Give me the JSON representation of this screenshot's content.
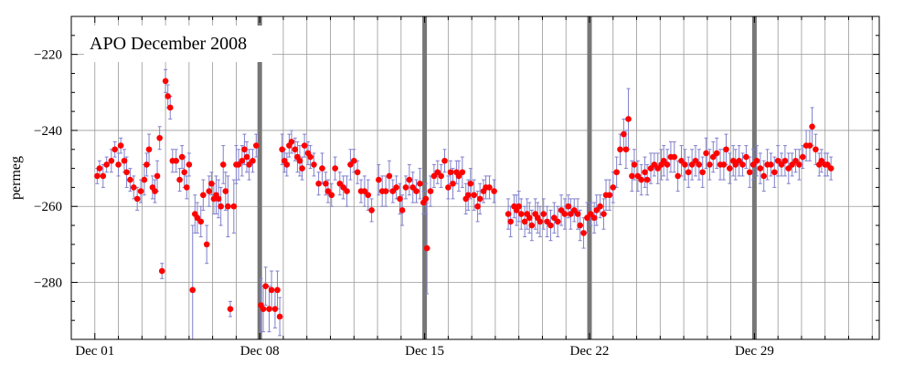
{
  "chart_data": {
    "type": "scatter",
    "title": "APO December 2008",
    "xlabel": "",
    "ylabel": "permeg",
    "xlim": [
      0.0,
      34.3
    ],
    "ylim": [
      -295,
      -210
    ],
    "x_ticks": [
      {
        "value": 1,
        "label": "Dec 01"
      },
      {
        "value": 8,
        "label": "Dec 08"
      },
      {
        "value": 15,
        "label": "Dec 15"
      },
      {
        "value": 22,
        "label": "Dec 22"
      },
      {
        "value": 29,
        "label": "Dec 29"
      }
    ],
    "y_ticks": [
      -280,
      -260,
      -240,
      -220
    ],
    "grid": true,
    "week_markers": [
      8,
      15,
      22,
      29
    ],
    "colors": {
      "point": "#ff0000",
      "errorbar": "#8080cc",
      "grid": "#999999",
      "week_marker": "#777777"
    },
    "series": [
      {
        "name": "",
        "points": [
          [
            1.1,
            -252,
            2
          ],
          [
            1.2,
            -250,
            2
          ],
          [
            1.35,
            -252,
            3
          ],
          [
            1.5,
            -249,
            2
          ],
          [
            1.7,
            -248,
            3
          ],
          [
            1.85,
            -245,
            2
          ],
          [
            2.0,
            -249,
            3
          ],
          [
            2.1,
            -244,
            2
          ],
          [
            2.25,
            -248,
            3
          ],
          [
            2.35,
            -251,
            4
          ],
          [
            2.5,
            -253,
            3
          ],
          [
            2.65,
            -255,
            3
          ],
          [
            2.8,
            -258,
            3
          ],
          [
            2.95,
            -256,
            3
          ],
          [
            3.1,
            -253,
            4
          ],
          [
            3.2,
            -249,
            3
          ],
          [
            3.3,
            -245,
            4
          ],
          [
            3.45,
            -255,
            3
          ],
          [
            3.55,
            -256,
            3
          ],
          [
            3.65,
            -252,
            4
          ],
          [
            3.75,
            -242,
            3
          ],
          [
            3.85,
            -277,
            2
          ],
          [
            4.0,
            -227,
            3
          ],
          [
            4.1,
            -231,
            3
          ],
          [
            4.2,
            -234,
            3
          ],
          [
            4.3,
            -248,
            3
          ],
          [
            4.45,
            -248,
            3
          ],
          [
            4.6,
            -253,
            3
          ],
          [
            4.7,
            -247,
            3
          ],
          [
            4.8,
            -251,
            4
          ],
          [
            4.9,
            -255,
            3
          ],
          [
            5.0,
            -249,
            3
          ],
          [
            5.15,
            -282,
            17
          ],
          [
            5.25,
            -262,
            5
          ],
          [
            5.35,
            -263,
            4
          ],
          [
            5.5,
            -264,
            4
          ],
          [
            5.6,
            -257,
            4
          ],
          [
            5.75,
            -270,
            5
          ],
          [
            5.85,
            -256,
            4
          ],
          [
            5.95,
            -254,
            3
          ],
          [
            6.05,
            -258,
            4
          ],
          [
            6.15,
            -257,
            5
          ],
          [
            6.25,
            -258,
            5
          ],
          [
            6.35,
            -260,
            5
          ],
          [
            6.45,
            -249,
            5
          ],
          [
            6.55,
            -256,
            5
          ],
          [
            6.65,
            -260,
            8
          ],
          [
            6.75,
            -287,
            2
          ],
          [
            6.9,
            -260,
            7
          ],
          [
            7.0,
            -249,
            5
          ],
          [
            7.1,
            -249,
            4
          ],
          [
            7.25,
            -248,
            4
          ],
          [
            7.35,
            -245,
            4
          ],
          [
            7.45,
            -247,
            4
          ],
          [
            7.55,
            -249,
            4
          ],
          [
            7.7,
            -248,
            3
          ],
          [
            7.85,
            -244,
            3
          ],
          [
            8.05,
            -286,
            7
          ],
          [
            8.15,
            -287,
            6
          ],
          [
            8.25,
            -281,
            5
          ],
          [
            8.4,
            -287,
            6
          ],
          [
            8.5,
            -282,
            5
          ],
          [
            8.65,
            -287,
            5
          ],
          [
            8.75,
            -282,
            5
          ],
          [
            8.85,
            -289,
            5
          ],
          [
            8.95,
            -245,
            4
          ],
          [
            9.05,
            -248,
            3
          ],
          [
            9.15,
            -249,
            3
          ],
          [
            9.25,
            -244,
            3
          ],
          [
            9.35,
            -243,
            3
          ],
          [
            9.5,
            -245,
            3
          ],
          [
            9.6,
            -247,
            4
          ],
          [
            9.7,
            -248,
            4
          ],
          [
            9.8,
            -250,
            3
          ],
          [
            9.9,
            -244,
            3
          ],
          [
            10.05,
            -246,
            3
          ],
          [
            10.15,
            -247,
            3
          ],
          [
            10.3,
            -249,
            3
          ],
          [
            10.5,
            -254,
            3
          ],
          [
            10.65,
            -250,
            4
          ],
          [
            10.8,
            -254,
            3
          ],
          [
            10.9,
            -256,
            3
          ],
          [
            11.05,
            -257,
            3
          ],
          [
            11.2,
            -250,
            3
          ],
          [
            11.4,
            -254,
            3
          ],
          [
            11.55,
            -255,
            3
          ],
          [
            11.7,
            -256,
            4
          ],
          [
            11.85,
            -249,
            4
          ],
          [
            12.0,
            -248,
            3
          ],
          [
            12.15,
            -251,
            3
          ],
          [
            12.3,
            -256,
            3
          ],
          [
            12.45,
            -256,
            4
          ],
          [
            12.6,
            -257,
            4
          ],
          [
            12.75,
            -261,
            3
          ],
          [
            13.05,
            -253,
            4
          ],
          [
            13.2,
            -256,
            4
          ],
          [
            13.35,
            -256,
            4
          ],
          [
            13.5,
            -252,
            4
          ],
          [
            13.65,
            -256,
            3
          ],
          [
            13.8,
            -255,
            3
          ],
          [
            13.95,
            -258,
            4
          ],
          [
            14.05,
            -261,
            4
          ],
          [
            14.2,
            -255,
            3
          ],
          [
            14.35,
            -253,
            4
          ],
          [
            14.5,
            -255,
            4
          ],
          [
            14.65,
            -256,
            3
          ],
          [
            14.8,
            -254,
            4
          ],
          [
            14.95,
            -259,
            3
          ],
          [
            15.05,
            -258,
            4
          ],
          [
            15.1,
            -271,
            12
          ],
          [
            15.25,
            -256,
            4
          ],
          [
            15.4,
            -252,
            3
          ],
          [
            15.55,
            -251,
            3
          ],
          [
            15.7,
            -252,
            3
          ],
          [
            15.85,
            -248,
            3
          ],
          [
            16.0,
            -255,
            3
          ],
          [
            16.1,
            -251,
            3
          ],
          [
            16.2,
            -254,
            4
          ],
          [
            16.35,
            -251,
            3
          ],
          [
            16.45,
            -252,
            4
          ],
          [
            16.6,
            -251,
            4
          ],
          [
            16.75,
            -258,
            4
          ],
          [
            16.85,
            -257,
            4
          ],
          [
            16.95,
            -254,
            4
          ],
          [
            17.1,
            -257,
            4
          ],
          [
            17.25,
            -260,
            4
          ],
          [
            17.35,
            -258,
            4
          ],
          [
            17.5,
            -256,
            3
          ],
          [
            17.6,
            -255,
            3
          ],
          [
            17.75,
            -255,
            3
          ],
          [
            17.95,
            -256,
            3
          ],
          [
            18.55,
            -262,
            4
          ],
          [
            18.65,
            -264,
            4
          ],
          [
            18.8,
            -260,
            3
          ],
          [
            18.9,
            -261,
            4
          ],
          [
            19.0,
            -260,
            4
          ],
          [
            19.1,
            -262,
            4
          ],
          [
            19.25,
            -264,
            4
          ],
          [
            19.35,
            -262,
            4
          ],
          [
            19.45,
            -263,
            4
          ],
          [
            19.55,
            -265,
            4
          ],
          [
            19.7,
            -262,
            4
          ],
          [
            19.8,
            -263,
            4
          ],
          [
            19.9,
            -264,
            4
          ],
          [
            20.05,
            -262,
            4
          ],
          [
            20.2,
            -264,
            4
          ],
          [
            20.35,
            -265,
            4
          ],
          [
            20.5,
            -263,
            4
          ],
          [
            20.65,
            -264,
            4
          ],
          [
            20.8,
            -261,
            4
          ],
          [
            20.95,
            -262,
            4
          ],
          [
            21.1,
            -260,
            3
          ],
          [
            21.2,
            -262,
            4
          ],
          [
            21.35,
            -261,
            3
          ],
          [
            21.5,
            -262,
            4
          ],
          [
            21.6,
            -265,
            4
          ],
          [
            21.75,
            -267,
            4
          ],
          [
            21.9,
            -263,
            4
          ],
          [
            22.05,
            -262,
            3
          ],
          [
            22.2,
            -263,
            4
          ],
          [
            22.3,
            -261,
            4
          ],
          [
            22.45,
            -260,
            3
          ],
          [
            22.6,
            -262,
            4
          ],
          [
            22.7,
            -257,
            4
          ],
          [
            22.85,
            -257,
            4
          ],
          [
            23.0,
            -255,
            4
          ],
          [
            23.15,
            -251,
            4
          ],
          [
            23.3,
            -245,
            4
          ],
          [
            23.45,
            -241,
            4
          ],
          [
            23.55,
            -245,
            5
          ],
          [
            23.65,
            -237,
            8
          ],
          [
            23.8,
            -252,
            4
          ],
          [
            23.9,
            -249,
            4
          ],
          [
            24.05,
            -252,
            4
          ],
          [
            24.2,
            -253,
            4
          ],
          [
            24.35,
            -251,
            4
          ],
          [
            24.45,
            -253,
            4
          ],
          [
            24.6,
            -250,
            4
          ],
          [
            24.75,
            -249,
            3
          ],
          [
            24.9,
            -250,
            4
          ],
          [
            25.05,
            -249,
            4
          ],
          [
            25.15,
            -248,
            4
          ],
          [
            25.3,
            -249,
            4
          ],
          [
            25.45,
            -247,
            4
          ],
          [
            25.6,
            -247,
            4
          ],
          [
            25.75,
            -252,
            4
          ],
          [
            25.9,
            -248,
            4
          ],
          [
            26.05,
            -249,
            4
          ],
          [
            26.2,
            -251,
            4
          ],
          [
            26.35,
            -249,
            4
          ],
          [
            26.5,
            -248,
            4
          ],
          [
            26.65,
            -249,
            4
          ],
          [
            26.8,
            -251,
            4
          ],
          [
            26.95,
            -246,
            4
          ],
          [
            27.1,
            -249,
            4
          ],
          [
            27.25,
            -247,
            4
          ],
          [
            27.4,
            -246,
            4
          ],
          [
            27.55,
            -249,
            4
          ],
          [
            27.7,
            -249,
            4
          ],
          [
            27.8,
            -245,
            4
          ],
          [
            27.95,
            -250,
            4
          ],
          [
            28.1,
            -248,
            4
          ],
          [
            28.2,
            -249,
            4
          ],
          [
            28.35,
            -248,
            4
          ],
          [
            28.5,
            -249,
            3
          ],
          [
            28.65,
            -247,
            3
          ],
          [
            28.8,
            -251,
            4
          ],
          [
            28.95,
            -249,
            4
          ],
          [
            29.1,
            -248,
            4
          ],
          [
            29.25,
            -250,
            4
          ],
          [
            29.4,
            -252,
            4
          ],
          [
            29.55,
            -249,
            4
          ],
          [
            29.7,
            -249,
            3
          ],
          [
            29.85,
            -251,
            4
          ],
          [
            30.0,
            -248,
            4
          ],
          [
            30.15,
            -249,
            3
          ],
          [
            30.3,
            -248,
            4
          ],
          [
            30.45,
            -250,
            4
          ],
          [
            30.6,
            -249,
            3
          ],
          [
            30.75,
            -248,
            3
          ],
          [
            30.9,
            -249,
            4
          ],
          [
            31.05,
            -247,
            3
          ],
          [
            31.2,
            -244,
            4
          ],
          [
            31.35,
            -244,
            4
          ],
          [
            31.45,
            -239,
            5
          ],
          [
            31.6,
            -245,
            4
          ],
          [
            31.75,
            -249,
            3
          ],
          [
            31.85,
            -248,
            3
          ],
          [
            32.0,
            -249,
            3
          ],
          [
            32.1,
            -249,
            3
          ],
          [
            32.25,
            -250,
            3
          ]
        ]
      }
    ]
  }
}
